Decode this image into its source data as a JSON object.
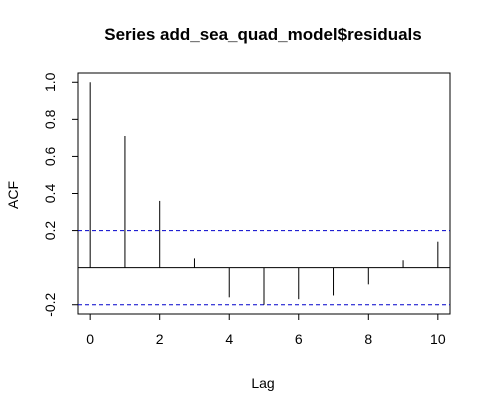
{
  "chart_data": {
    "type": "bar",
    "title": "Series  add_sea_quad_model$residuals",
    "xlabel": "Lag",
    "ylabel": "ACF",
    "x": [
      0,
      1,
      2,
      3,
      4,
      5,
      6,
      7,
      8,
      9,
      10
    ],
    "values": [
      1.0,
      0.71,
      0.36,
      0.05,
      -0.16,
      -0.2,
      -0.17,
      -0.15,
      -0.09,
      0.04,
      0.14
    ],
    "xlim": [
      -0.35,
      10.35
    ],
    "ylim": [
      -0.25,
      1.05
    ],
    "xticks": [
      0,
      2,
      4,
      6,
      8,
      10
    ],
    "yticks": [
      -0.2,
      0.2,
      0.4,
      0.6,
      0.8,
      1.0
    ],
    "ytick_labels": [
      "-0.2",
      "0.2",
      "0.4",
      "0.6",
      "0.8",
      "1.0"
    ],
    "confidence_bounds": [
      0.2,
      -0.2
    ],
    "zero_line": 0,
    "colors": {
      "bars": "#000000",
      "bounds": "#0000cc",
      "axes": "#000000"
    },
    "grid": false,
    "legend": "none"
  }
}
